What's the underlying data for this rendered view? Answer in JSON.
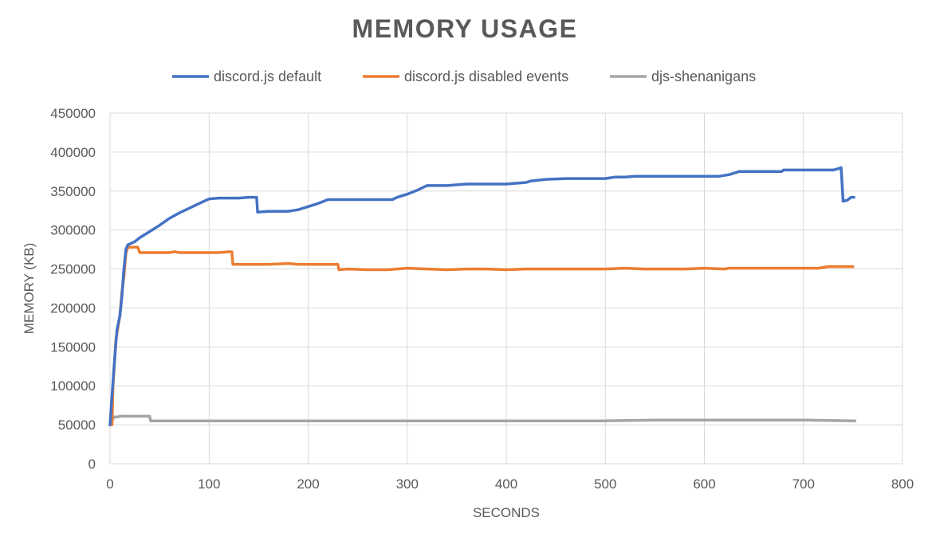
{
  "chart_data": {
    "type": "line",
    "title": "MEMORY USAGE",
    "xlabel": "SECONDS",
    "ylabel": "MEMORY (KB)",
    "xlim": [
      0,
      800
    ],
    "ylim": [
      0,
      450000
    ],
    "x_ticks": [
      0,
      100,
      200,
      300,
      400,
      500,
      600,
      700,
      800
    ],
    "y_ticks": [
      0,
      50000,
      100000,
      150000,
      200000,
      250000,
      300000,
      350000,
      400000,
      450000
    ],
    "grid": true,
    "legend_position": "top-center",
    "series": [
      {
        "name": "discord.js default",
        "color": "#4472c4",
        "points": [
          [
            0,
            50000
          ],
          [
            3,
            105000
          ],
          [
            5,
            140000
          ],
          [
            7,
            172000
          ],
          [
            10,
            190000
          ],
          [
            12,
            215000
          ],
          [
            14,
            250000
          ],
          [
            16,
            275000
          ],
          [
            18,
            281000
          ],
          [
            25,
            285000
          ],
          [
            30,
            290000
          ],
          [
            40,
            298000
          ],
          [
            50,
            306000
          ],
          [
            60,
            315000
          ],
          [
            70,
            322000
          ],
          [
            80,
            328000
          ],
          [
            90,
            334000
          ],
          [
            100,
            340000
          ],
          [
            110,
            341000
          ],
          [
            120,
            341000
          ],
          [
            130,
            341000
          ],
          [
            140,
            342000
          ],
          [
            148,
            342000
          ],
          [
            149,
            323000
          ],
          [
            160,
            324000
          ],
          [
            170,
            324000
          ],
          [
            180,
            324000
          ],
          [
            190,
            326000
          ],
          [
            200,
            330000
          ],
          [
            210,
            334000
          ],
          [
            220,
            339000
          ],
          [
            240,
            339000
          ],
          [
            260,
            339000
          ],
          [
            285,
            339000
          ],
          [
            290,
            342000
          ],
          [
            300,
            346000
          ],
          [
            310,
            351000
          ],
          [
            320,
            357000
          ],
          [
            340,
            357000
          ],
          [
            360,
            359000
          ],
          [
            380,
            359000
          ],
          [
            400,
            359000
          ],
          [
            420,
            361000
          ],
          [
            425,
            363000
          ],
          [
            440,
            365000
          ],
          [
            460,
            366000
          ],
          [
            480,
            366000
          ],
          [
            500,
            366000
          ],
          [
            510,
            368000
          ],
          [
            520,
            368000
          ],
          [
            530,
            369000
          ],
          [
            560,
            369000
          ],
          [
            590,
            369000
          ],
          [
            615,
            369000
          ],
          [
            625,
            371000
          ],
          [
            635,
            375000
          ],
          [
            660,
            375000
          ],
          [
            678,
            375000
          ],
          [
            680,
            377000
          ],
          [
            700,
            377000
          ],
          [
            720,
            377000
          ],
          [
            730,
            377000
          ],
          [
            736,
            379000
          ],
          [
            738,
            380000
          ],
          [
            740,
            337000
          ],
          [
            744,
            338000
          ],
          [
            748,
            342000
          ],
          [
            751,
            342000
          ]
        ]
      },
      {
        "name": "discord.js disabled events",
        "color": "#ed7d31",
        "points": [
          [
            0,
            50000
          ],
          [
            2,
            50000
          ],
          [
            3,
            100000
          ],
          [
            6,
            160000
          ],
          [
            10,
            190000
          ],
          [
            12,
            220000
          ],
          [
            14,
            240000
          ],
          [
            16,
            270000
          ],
          [
            18,
            278000
          ],
          [
            28,
            278000
          ],
          [
            30,
            271000
          ],
          [
            40,
            271000
          ],
          [
            50,
            271000
          ],
          [
            60,
            271000
          ],
          [
            65,
            272000
          ],
          [
            70,
            271000
          ],
          [
            80,
            271000
          ],
          [
            90,
            271000
          ],
          [
            100,
            271000
          ],
          [
            110,
            271000
          ],
          [
            120,
            272000
          ],
          [
            123,
            272000
          ],
          [
            124,
            256000
          ],
          [
            140,
            256000
          ],
          [
            160,
            256000
          ],
          [
            180,
            257000
          ],
          [
            190,
            256000
          ],
          [
            200,
            256000
          ],
          [
            210,
            256000
          ],
          [
            230,
            256000
          ],
          [
            231,
            249000
          ],
          [
            240,
            250000
          ],
          [
            260,
            249000
          ],
          [
            280,
            249000
          ],
          [
            300,
            251000
          ],
          [
            320,
            250000
          ],
          [
            340,
            249000
          ],
          [
            360,
            250000
          ],
          [
            380,
            250000
          ],
          [
            400,
            249000
          ],
          [
            420,
            250000
          ],
          [
            440,
            250000
          ],
          [
            460,
            250000
          ],
          [
            480,
            250000
          ],
          [
            500,
            250000
          ],
          [
            520,
            251000
          ],
          [
            540,
            250000
          ],
          [
            560,
            250000
          ],
          [
            580,
            250000
          ],
          [
            600,
            251000
          ],
          [
            620,
            250000
          ],
          [
            625,
            251000
          ],
          [
            640,
            251000
          ],
          [
            660,
            251000
          ],
          [
            680,
            251000
          ],
          [
            700,
            251000
          ],
          [
            715,
            251000
          ],
          [
            720,
            252000
          ],
          [
            725,
            253000
          ],
          [
            735,
            253000
          ],
          [
            750,
            253000
          ]
        ]
      },
      {
        "name": "djs-shenanigans",
        "color": "#a5a5a5",
        "points": [
          [
            0,
            50000
          ],
          [
            2,
            55000
          ],
          [
            4,
            60000
          ],
          [
            8,
            60000
          ],
          [
            10,
            61000
          ],
          [
            20,
            61000
          ],
          [
            30,
            61000
          ],
          [
            40,
            61000
          ],
          [
            41,
            55000
          ],
          [
            50,
            55000
          ],
          [
            60,
            55000
          ],
          [
            80,
            55000
          ],
          [
            100,
            55000
          ],
          [
            120,
            55000
          ],
          [
            150,
            55000
          ],
          [
            200,
            55000
          ],
          [
            250,
            55000
          ],
          [
            300,
            55000
          ],
          [
            350,
            55000
          ],
          [
            400,
            55000
          ],
          [
            450,
            55000
          ],
          [
            500,
            55000
          ],
          [
            550,
            56000
          ],
          [
            600,
            56000
          ],
          [
            650,
            56000
          ],
          [
            700,
            56000
          ],
          [
            752,
            55000
          ]
        ]
      }
    ]
  }
}
